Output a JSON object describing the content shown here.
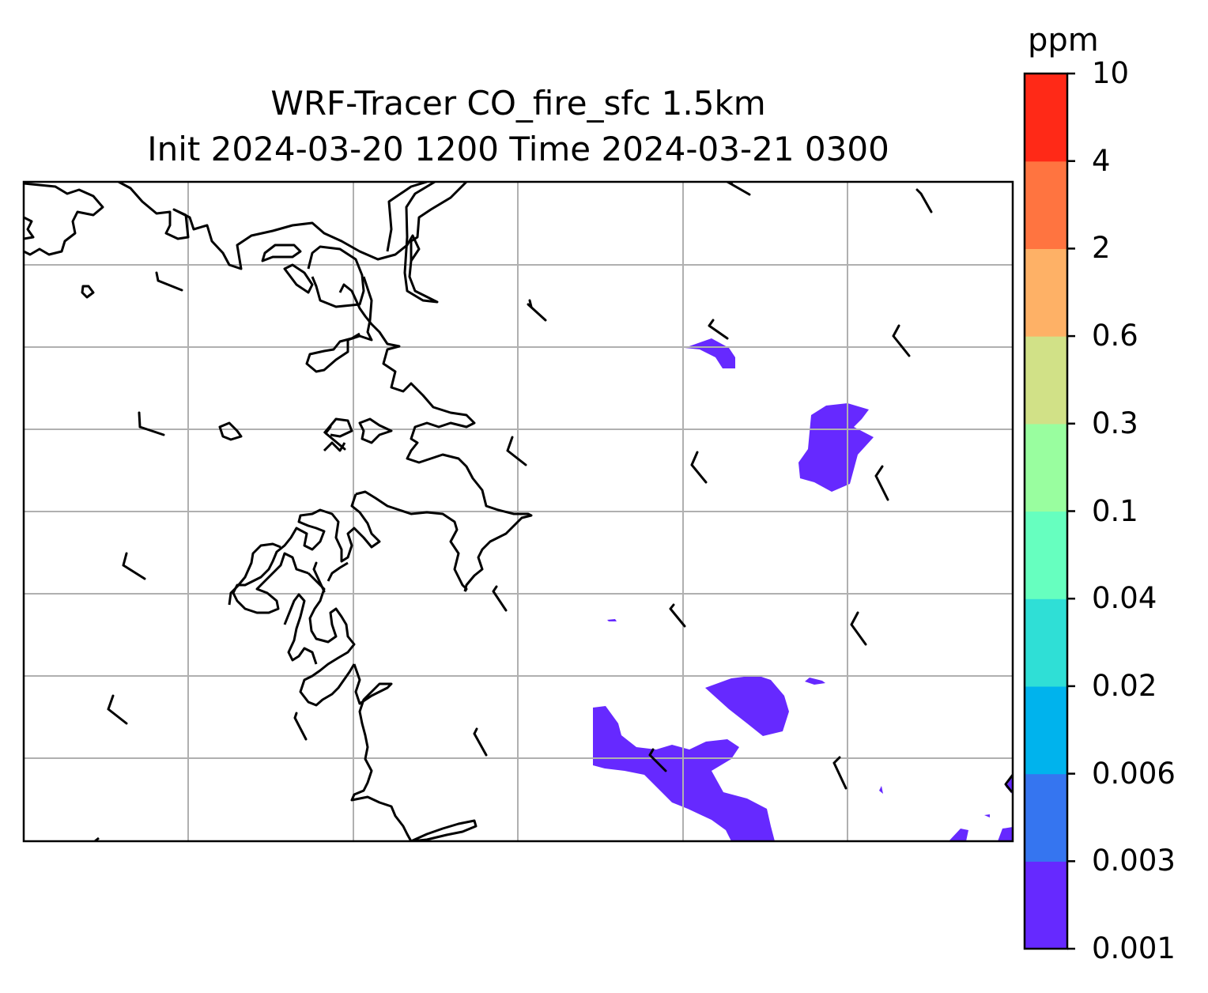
{
  "title": {
    "line1": "WRF-Tracer CO_fire_sfc 1.5km",
    "line2": "Init 2024-03-20 1200 Time 2024-03-21 0300"
  },
  "colorbar": {
    "unit": "ppm",
    "levels": [
      "0.001",
      "0.003",
      "0.006",
      "0.02",
      "0.04",
      "0.1",
      "0.3",
      "0.6",
      "2",
      "4",
      "10"
    ],
    "colors": [
      "#6629ff",
      "#3575f0",
      "#00b3ed",
      "#2fdfd6",
      "#66ffbf",
      "#99fe9f",
      "#d1e187",
      "#feb166",
      "#ff7440",
      "#ff2917"
    ]
  },
  "map": {
    "gridlines": true,
    "coastline_color": "#000000",
    "gridline_color": "#b0b0b0",
    "wind_barbs": true
  },
  "chart_data": {
    "type": "heatmap",
    "title": "WRF-Tracer CO_fire_sfc 1.5km\nInit 2024-03-20 1200 Time 2024-03-21 0300",
    "variable": "CO_fire_sfc",
    "colorbar_label": "ppm",
    "colorbar_ticks": [
      0.001,
      0.003,
      0.006,
      0.02,
      0.04,
      0.1,
      0.3,
      0.6,
      2,
      4,
      10
    ],
    "visible_bins": [
      "0.001-0.003"
    ],
    "grid": true
  }
}
